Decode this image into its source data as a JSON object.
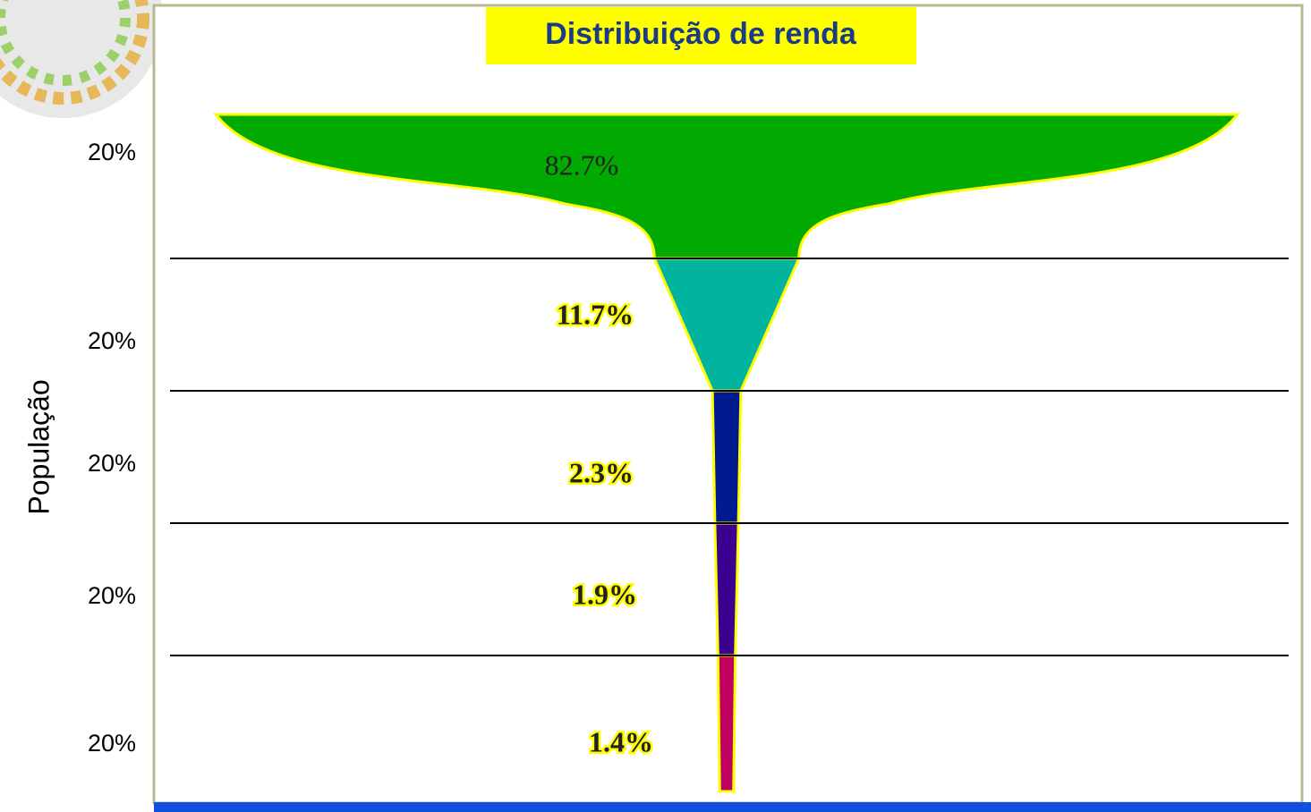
{
  "chart_data": {
    "type": "champagne",
    "title": "Distribuição de renda",
    "ylabel": "População",
    "categories": [
      "20%",
      "20%",
      "20%",
      "20%",
      "20%"
    ],
    "values": [
      82.7,
      11.7,
      2.3,
      1.9,
      1.4
    ],
    "value_labels": [
      "82.7%",
      "11.7%",
      "2.3%",
      "1.9%",
      "1.4%"
    ],
    "colors": [
      "#00aa00",
      "#00b4a0",
      "#001a90",
      "#3a0090",
      "#c00060"
    ]
  }
}
